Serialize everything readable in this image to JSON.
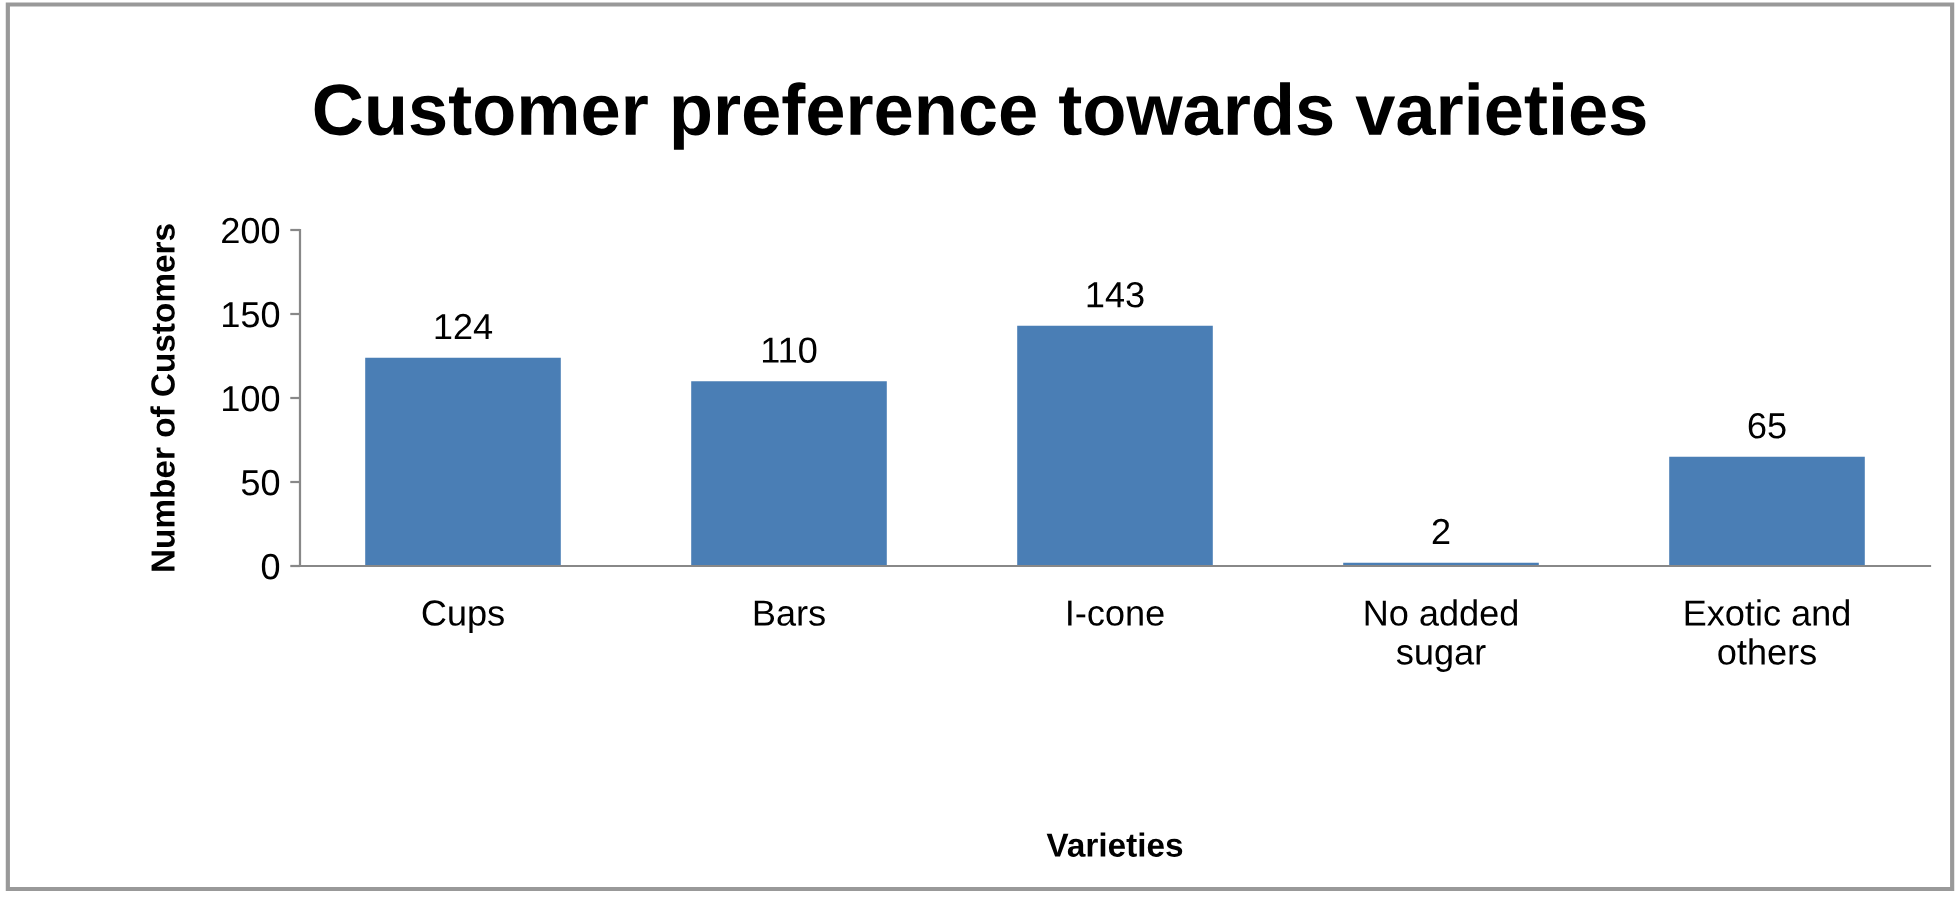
{
  "chart_data": {
    "type": "bar",
    "title": "Customer preference towards varieties",
    "xlabel": "Varieties",
    "ylabel": "Number of Customers",
    "categories": [
      "Cups",
      "Bars",
      "I-cone",
      "No added sugar",
      "Exotic and others"
    ],
    "values": [
      124,
      110,
      143,
      2,
      65
    ],
    "color": "#4a7eb5",
    "ylim": [
      0,
      200
    ],
    "yticks": [
      0,
      50,
      100,
      150,
      200
    ],
    "grid": false,
    "data_labels": true
  }
}
